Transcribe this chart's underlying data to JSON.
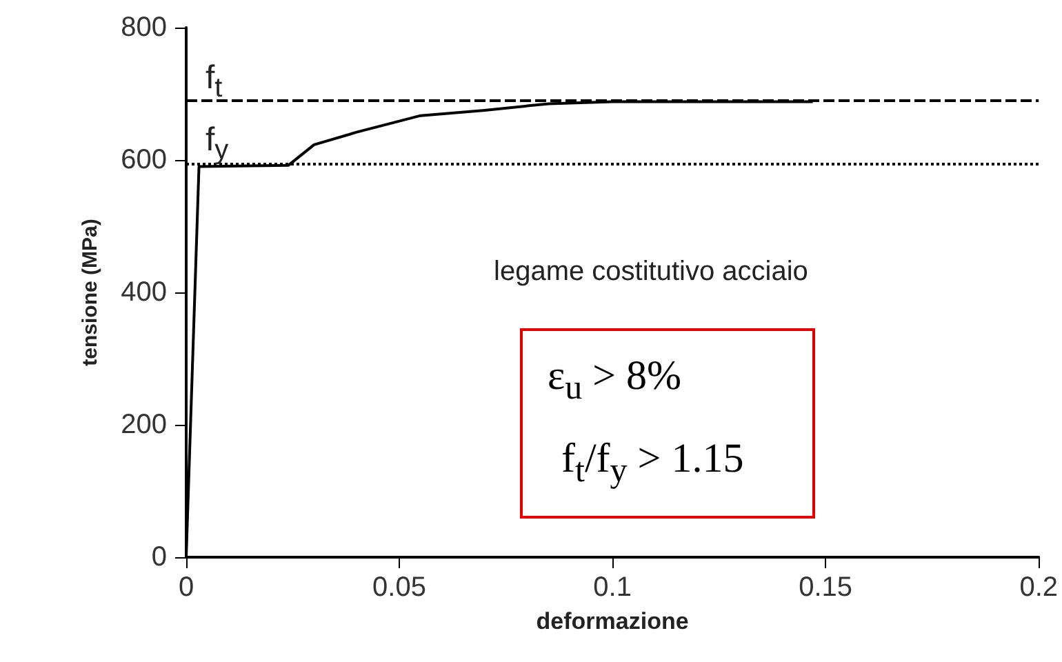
{
  "chart_data": {
    "type": "line",
    "xlabel": "deformazione",
    "ylabel": "tensione (MPa)",
    "x": [
      0,
      0.003,
      0.024,
      0.03,
      0.04,
      0.055,
      0.07,
      0.085,
      0.1,
      0.147
    ],
    "series": [
      {
        "color": "#000000",
        "values": [
          0,
          590,
          592,
          623,
          642,
          667,
          675,
          685,
          688,
          688
        ]
      }
    ],
    "xlim": [
      0,
      0.2
    ],
    "xticks": [
      0,
      0.05,
      0.1,
      0.15,
      0.2
    ],
    "ylim": [
      0,
      800
    ],
    "yticks": [
      0,
      200,
      400,
      600,
      800
    ],
    "grid": false,
    "marker": "none",
    "line_style": "solid",
    "ref_lines": [
      {
        "axis": "y",
        "value": 690,
        "label": "f$_{t}$",
        "color": "#000000",
        "line_style": "dashed"
      },
      {
        "axis": "y",
        "value": 595,
        "label": "f$_{y}$",
        "color": "#000000",
        "line_style": "dotted"
      }
    ],
    "annotations": [
      "legame costitutivo acciaio",
      "ε$_{u}$ > 8%",
      "f$_{t}$/f$_{y}$ > 1.15"
    ]
  }
}
